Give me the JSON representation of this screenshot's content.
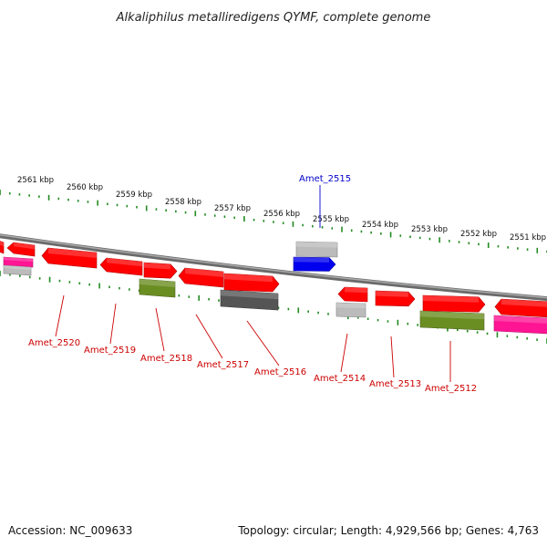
{
  "title": "Alkaliphilus metalliredigens QYMF, complete genome",
  "accession": "Accession: NC_009633",
  "summary": "Topology: circular; Length: 4,929,566 bp; Genes: 4,763",
  "colors": {
    "red": "#ff0000",
    "gray_light": "#bbbbbb",
    "gray_dark": "#555555",
    "blue": "#0000ee",
    "olive": "#6b8e23",
    "pink": "#ff1493",
    "tick": "#228b22",
    "backbone": "#888888",
    "label_red": "#cc0000",
    "label_blue": "#0000cc"
  },
  "kbp_labels": [
    "2561 kbp",
    "2560 kbp",
    "2559 kbp",
    "2558 kbp",
    "2557 kbp",
    "2556 kbp",
    "2555 kbp",
    "2554 kbp",
    "2553 kbp",
    "2552 kbp",
    "2551 kbp"
  ],
  "gene_labels": [
    {
      "name": "Amet_2515",
      "color": "blue"
    },
    {
      "name": "Amet_2520",
      "color": "red"
    },
    {
      "name": "Amet_2519",
      "color": "red"
    },
    {
      "name": "Amet_2518",
      "color": "red"
    },
    {
      "name": "Amet_2517",
      "color": "red"
    },
    {
      "name": "Amet_2516",
      "color": "red"
    },
    {
      "name": "Amet_2514",
      "color": "red"
    },
    {
      "name": "Amet_2513",
      "color": "red"
    },
    {
      "name": "Amet_2512",
      "color": "red"
    }
  ],
  "features": [
    {
      "name": "feature-red",
      "color": "red"
    },
    {
      "name": "feature-red",
      "color": "red"
    },
    {
      "name": "feature-pink",
      "color": "pink"
    },
    {
      "name": "feature-gray",
      "color": "gray_light"
    },
    {
      "name": "feature-red",
      "color": "red"
    },
    {
      "name": "feature-red",
      "color": "red"
    },
    {
      "name": "feature-red",
      "color": "red"
    },
    {
      "name": "feature-olive",
      "color": "olive"
    },
    {
      "name": "feature-red",
      "color": "red"
    },
    {
      "name": "feature-red",
      "color": "red"
    },
    {
      "name": "feature-dark-gray",
      "color": "gray_dark"
    },
    {
      "name": "feature-gray",
      "color": "gray_light"
    },
    {
      "name": "feature-blue",
      "color": "blue"
    },
    {
      "name": "feature-red",
      "color": "red"
    },
    {
      "name": "feature-gray",
      "color": "gray_light"
    },
    {
      "name": "feature-red",
      "color": "red"
    },
    {
      "name": "feature-red",
      "color": "red"
    },
    {
      "name": "feature-olive",
      "color": "olive"
    },
    {
      "name": "feature-red",
      "color": "red"
    },
    {
      "name": "feature-pink",
      "color": "pink"
    }
  ]
}
